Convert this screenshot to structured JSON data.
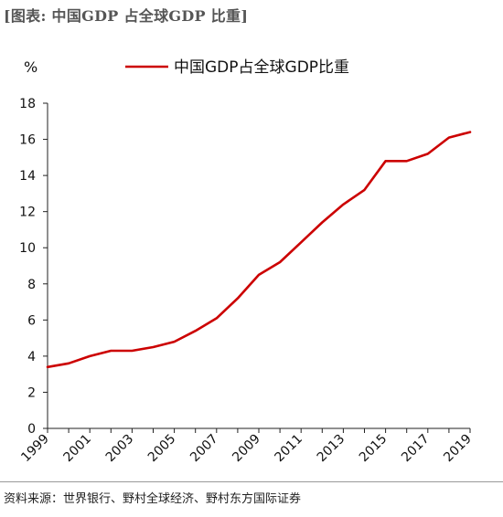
{
  "figure_title": "[图表: 中国GDP 占全球GDP 比重]",
  "source": "资料来源：世界银行、野村全球经济、野村东方国际证券",
  "chart_data": {
    "type": "line",
    "ylabel": "%",
    "ylim": [
      0,
      18
    ],
    "yticks": [
      0,
      2,
      4,
      6,
      8,
      10,
      12,
      14,
      16,
      18
    ],
    "xlim": [
      1999,
      2019
    ],
    "xticks": [
      1999,
      2001,
      2003,
      2005,
      2007,
      2009,
      2011,
      2013,
      2015,
      2017,
      2019
    ],
    "legend_position": "top",
    "grid": false,
    "series": [
      {
        "name": "中国GDP占全球GDP比重",
        "color": "#cc0000",
        "x": [
          1999,
          2000,
          2001,
          2002,
          2003,
          2004,
          2005,
          2006,
          2007,
          2008,
          2009,
          2010,
          2011,
          2012,
          2013,
          2014,
          2015,
          2016,
          2017,
          2018,
          2019
        ],
        "values": [
          3.4,
          3.6,
          4.0,
          4.3,
          4.3,
          4.5,
          4.8,
          5.4,
          6.1,
          7.2,
          8.5,
          9.2,
          10.3,
          11.4,
          12.4,
          13.2,
          14.8,
          14.8,
          15.2,
          16.1,
          16.4
        ]
      }
    ]
  }
}
